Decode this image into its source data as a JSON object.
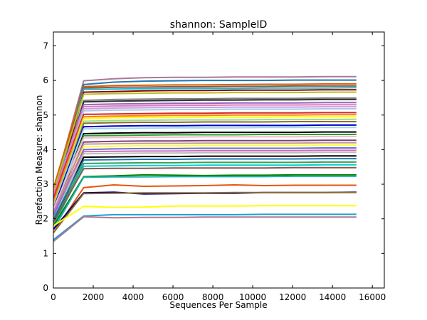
{
  "chart_data": {
    "type": "line",
    "title": "shannon: SampleID",
    "xlabel": "Sequences Per Sample",
    "ylabel": "Rarefaction Measure: shannon",
    "xlim": [
      0,
      16600
    ],
    "ylim": [
      0,
      7.4
    ],
    "xticks": [
      "0",
      "2000",
      "4000",
      "6000",
      "8000",
      "10000",
      "12000",
      "14000",
      "16000"
    ],
    "yticks": [
      "0",
      "1",
      "2",
      "3",
      "4",
      "5",
      "6",
      "7"
    ],
    "grid": false,
    "legend": "none",
    "x": [
      10,
      1520,
      3030,
      4540,
      6050,
      7560,
      9070,
      10580,
      12090,
      13600,
      15200
    ],
    "series": [
      {
        "color": "#ab7896",
        "values": [
          2.8,
          5.99,
          6.05,
          6.08,
          6.09,
          6.09,
          6.1,
          6.1,
          6.1,
          6.11,
          6.11
        ]
      },
      {
        "color": "#1f77b4",
        "values": [
          2.7,
          5.88,
          5.95,
          5.98,
          5.99,
          6.0,
          6.0,
          6.0,
          6.01,
          6.01,
          6.01
        ]
      },
      {
        "color": "#d95f02",
        "values": [
          2.9,
          5.82,
          5.85,
          5.86,
          5.87,
          5.87,
          5.88,
          5.89,
          5.89,
          5.9,
          5.9
        ]
      },
      {
        "color": "#8c564b",
        "values": [
          2.6,
          5.78,
          5.8,
          5.81,
          5.82,
          5.82,
          5.83,
          5.83,
          5.84,
          5.84,
          5.84
        ]
      },
      {
        "color": "#17becf",
        "values": [
          2.5,
          5.74,
          5.75,
          5.76,
          5.77,
          5.77,
          5.77,
          5.78,
          5.78,
          5.78,
          5.79
        ]
      },
      {
        "color": "#8b0000",
        "values": [
          2.4,
          5.66,
          5.68,
          5.7,
          5.71,
          5.71,
          5.72,
          5.72,
          5.72,
          5.73,
          5.73
        ]
      },
      {
        "color": "#bcbd22",
        "values": [
          2.8,
          5.6,
          5.62,
          5.63,
          5.64,
          5.64,
          5.65,
          5.65,
          5.65,
          5.66,
          5.66
        ]
      },
      {
        "color": "#7f7f7f",
        "values": [
          2.5,
          5.42,
          5.45,
          5.46,
          5.47,
          5.47,
          5.48,
          5.48,
          5.48,
          5.49,
          5.49
        ]
      },
      {
        "color": "#2f2f2f",
        "values": [
          2.3,
          5.38,
          5.4,
          5.41,
          5.42,
          5.43,
          5.43,
          5.44,
          5.44,
          5.45,
          5.45
        ]
      },
      {
        "color": "#9467bd",
        "values": [
          2.6,
          5.3,
          5.32,
          5.33,
          5.34,
          5.34,
          5.35,
          5.35,
          5.35,
          5.36,
          5.36
        ]
      },
      {
        "color": "#e377c2",
        "values": [
          2.7,
          5.24,
          5.26,
          5.27,
          5.28,
          5.28,
          5.29,
          5.29,
          5.29,
          5.3,
          5.3
        ]
      },
      {
        "color": "#c7a0d8",
        "values": [
          2.5,
          5.18,
          5.2,
          5.21,
          5.22,
          5.22,
          5.23,
          5.23,
          5.23,
          5.24,
          5.24
        ]
      },
      {
        "color": "#aec7e8",
        "values": [
          2.4,
          5.12,
          5.14,
          5.15,
          5.16,
          5.16,
          5.17,
          5.17,
          5.17,
          5.18,
          5.18
        ]
      },
      {
        "color": "#d62728",
        "values": [
          2.6,
          5.02,
          5.03,
          5.04,
          5.05,
          5.05,
          5.06,
          5.06,
          5.06,
          5.07,
          5.07
        ]
      },
      {
        "color": "#ff7f0e",
        "values": [
          2.5,
          4.95,
          4.97,
          4.98,
          4.99,
          4.99,
          5.0,
          5.0,
          5.0,
          5.01,
          5.01
        ]
      },
      {
        "color": "#ffff00",
        "values": [
          2.3,
          4.9,
          4.92,
          4.93,
          4.93,
          4.94,
          4.94,
          4.94,
          4.95,
          4.95,
          4.95
        ]
      },
      {
        "color": "#98df8a",
        "values": [
          2.4,
          4.82,
          4.84,
          4.85,
          4.86,
          4.86,
          4.86,
          4.87,
          4.87,
          4.87,
          4.88
        ]
      },
      {
        "color": "#8c6d31",
        "values": [
          2.2,
          4.76,
          4.78,
          4.79,
          4.79,
          4.8,
          4.8,
          4.8,
          4.81,
          4.81,
          4.81
        ]
      },
      {
        "color": "#0000cd",
        "values": [
          2.3,
          4.66,
          4.68,
          4.69,
          4.69,
          4.7,
          4.7,
          4.7,
          4.7,
          4.71,
          4.71
        ]
      },
      {
        "color": "#9edae5",
        "values": [
          2.2,
          4.6,
          4.61,
          4.62,
          4.63,
          4.63,
          4.63,
          4.64,
          4.64,
          4.64,
          4.64
        ]
      },
      {
        "color": "#000000",
        "values": [
          2.1,
          4.46,
          4.48,
          4.49,
          4.49,
          4.5,
          4.5,
          4.5,
          4.5,
          4.51,
          4.51
        ]
      },
      {
        "color": "#2ca02c",
        "values": [
          2.2,
          4.4,
          4.41,
          4.42,
          4.43,
          4.43,
          4.43,
          4.44,
          4.44,
          4.44,
          4.44
        ]
      },
      {
        "color": "#f7b6d2",
        "values": [
          2.3,
          4.34,
          4.35,
          4.36,
          4.36,
          4.37,
          4.37,
          4.37,
          4.37,
          4.38,
          4.38
        ]
      },
      {
        "color": "#7b4173",
        "values": [
          2.1,
          4.22,
          4.24,
          4.25,
          4.25,
          4.26,
          4.26,
          4.26,
          4.26,
          4.27,
          4.27
        ]
      },
      {
        "color": "#c49c94",
        "values": [
          2.2,
          4.16,
          4.17,
          4.18,
          4.18,
          4.19,
          4.19,
          4.19,
          4.19,
          4.2,
          4.2
        ]
      },
      {
        "color": "#ffff33",
        "values": [
          2.0,
          4.08,
          4.1,
          4.11,
          4.11,
          4.12,
          4.12,
          4.12,
          4.12,
          4.13,
          4.13
        ]
      },
      {
        "color": "#6b6ecf",
        "values": [
          2.1,
          4.0,
          4.02,
          4.03,
          4.03,
          4.04,
          4.04,
          4.04,
          4.04,
          4.05,
          4.05
        ]
      },
      {
        "color": "#ce6dbd",
        "values": [
          2.2,
          3.94,
          3.95,
          3.96,
          3.96,
          3.97,
          3.97,
          3.97,
          3.97,
          3.98,
          3.98
        ]
      },
      {
        "color": "#bdbdbd",
        "values": [
          2.0,
          3.88,
          3.89,
          3.9,
          3.9,
          3.91,
          3.91,
          3.91,
          3.91,
          3.92,
          3.92
        ]
      },
      {
        "color": "#000000",
        "values": [
          1.9,
          3.78,
          3.79,
          3.8,
          3.8,
          3.81,
          3.81,
          3.81,
          3.81,
          3.82,
          3.82
        ]
      },
      {
        "color": "#1f77b4",
        "values": [
          2.0,
          3.7,
          3.71,
          3.72,
          3.72,
          3.73,
          3.73,
          3.73,
          3.73,
          3.74,
          3.74
        ]
      },
      {
        "color": "#31a354",
        "values": [
          1.9,
          3.6,
          3.61,
          3.62,
          3.62,
          3.63,
          3.63,
          3.63,
          3.63,
          3.64,
          3.64
        ]
      },
      {
        "color": "#00ced1",
        "values": [
          1.8,
          3.52,
          3.53,
          3.54,
          3.54,
          3.55,
          3.55,
          3.55,
          3.55,
          3.56,
          3.56
        ]
      },
      {
        "color": "#8c564b",
        "values": [
          1.9,
          3.45,
          3.46,
          3.46,
          3.47,
          3.47,
          3.47,
          3.47,
          3.48,
          3.48,
          3.48
        ]
      },
      {
        "color": "#008000",
        "values": [
          1.8,
          3.22,
          3.24,
          3.27,
          3.26,
          3.25,
          3.26,
          3.26,
          3.27,
          3.27,
          3.27
        ]
      },
      {
        "color": "#20b2aa",
        "values": [
          1.7,
          3.2,
          3.21,
          3.21,
          3.22,
          3.22,
          3.22,
          3.22,
          3.23,
          3.23,
          3.23
        ]
      },
      {
        "color": "#e6550d",
        "values": [
          1.6,
          2.9,
          2.98,
          2.94,
          2.95,
          2.96,
          2.98,
          2.96,
          2.97,
          2.97,
          2.97
        ]
      },
      {
        "color": "#000080",
        "values": [
          1.7,
          2.75,
          2.77,
          2.72,
          2.73,
          2.74,
          2.74,
          2.76,
          2.76,
          2.76,
          2.77
        ]
      },
      {
        "color": "#8c6d31",
        "values": [
          1.6,
          2.73,
          2.74,
          2.75,
          2.75,
          2.75,
          2.76,
          2.76,
          2.76,
          2.76,
          2.76
        ]
      },
      {
        "color": "#ffff00",
        "values": [
          1.8,
          2.36,
          2.33,
          2.34,
          2.37,
          2.37,
          2.37,
          2.38,
          2.38,
          2.38,
          2.38
        ]
      },
      {
        "color": "#1f9fd0",
        "values": [
          1.4,
          2.08,
          2.12,
          2.12,
          2.12,
          2.12,
          2.12,
          2.13,
          2.13,
          2.13,
          2.13
        ]
      },
      {
        "color": "#ab7896",
        "values": [
          1.35,
          2.06,
          2.03,
          2.04,
          2.04,
          2.05,
          2.05,
          2.05,
          2.05,
          2.05,
          2.05
        ]
      }
    ]
  }
}
